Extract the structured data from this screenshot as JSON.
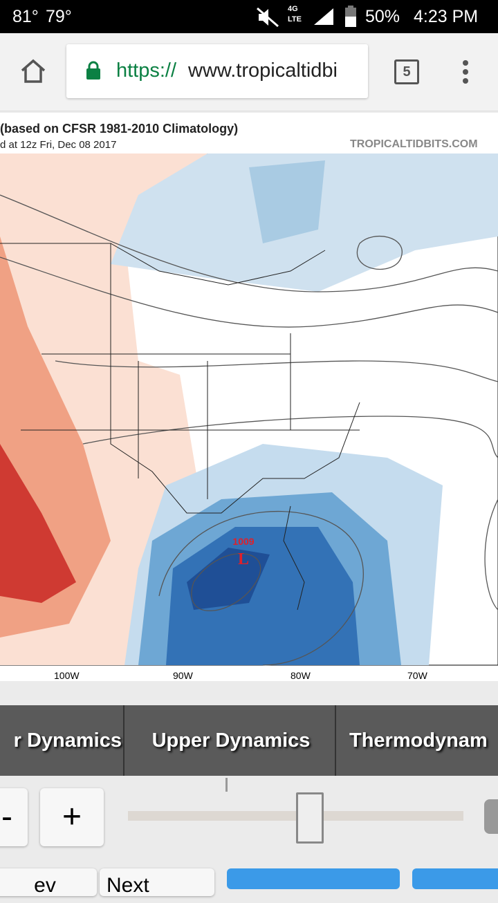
{
  "status_bar": {
    "temp1": "81°",
    "temp2": "79°",
    "net_top": "4G",
    "net_bottom": "LTE",
    "battery": "50%",
    "time": "4:23 PM"
  },
  "browser": {
    "scheme": "https://",
    "host": "www.tropicaltidbi",
    "tab_count": "5"
  },
  "map": {
    "subtitle": "(based on CFSR 1981-2010 Climatology)",
    "init_line": "d at 12z Fri, Dec 08 2017",
    "source": "TROPICALTIDBITS.COM",
    "low_pressure": "1009",
    "low_symbol": "L",
    "lon_labels": [
      "100W",
      "90W",
      "80W",
      "70W"
    ]
  },
  "tabs": [
    "r Dynamics",
    "Upper Dynamics",
    "Thermodynam"
  ],
  "controls": {
    "minus": "-",
    "plus": "+",
    "prev": "ev",
    "next": "Next"
  }
}
